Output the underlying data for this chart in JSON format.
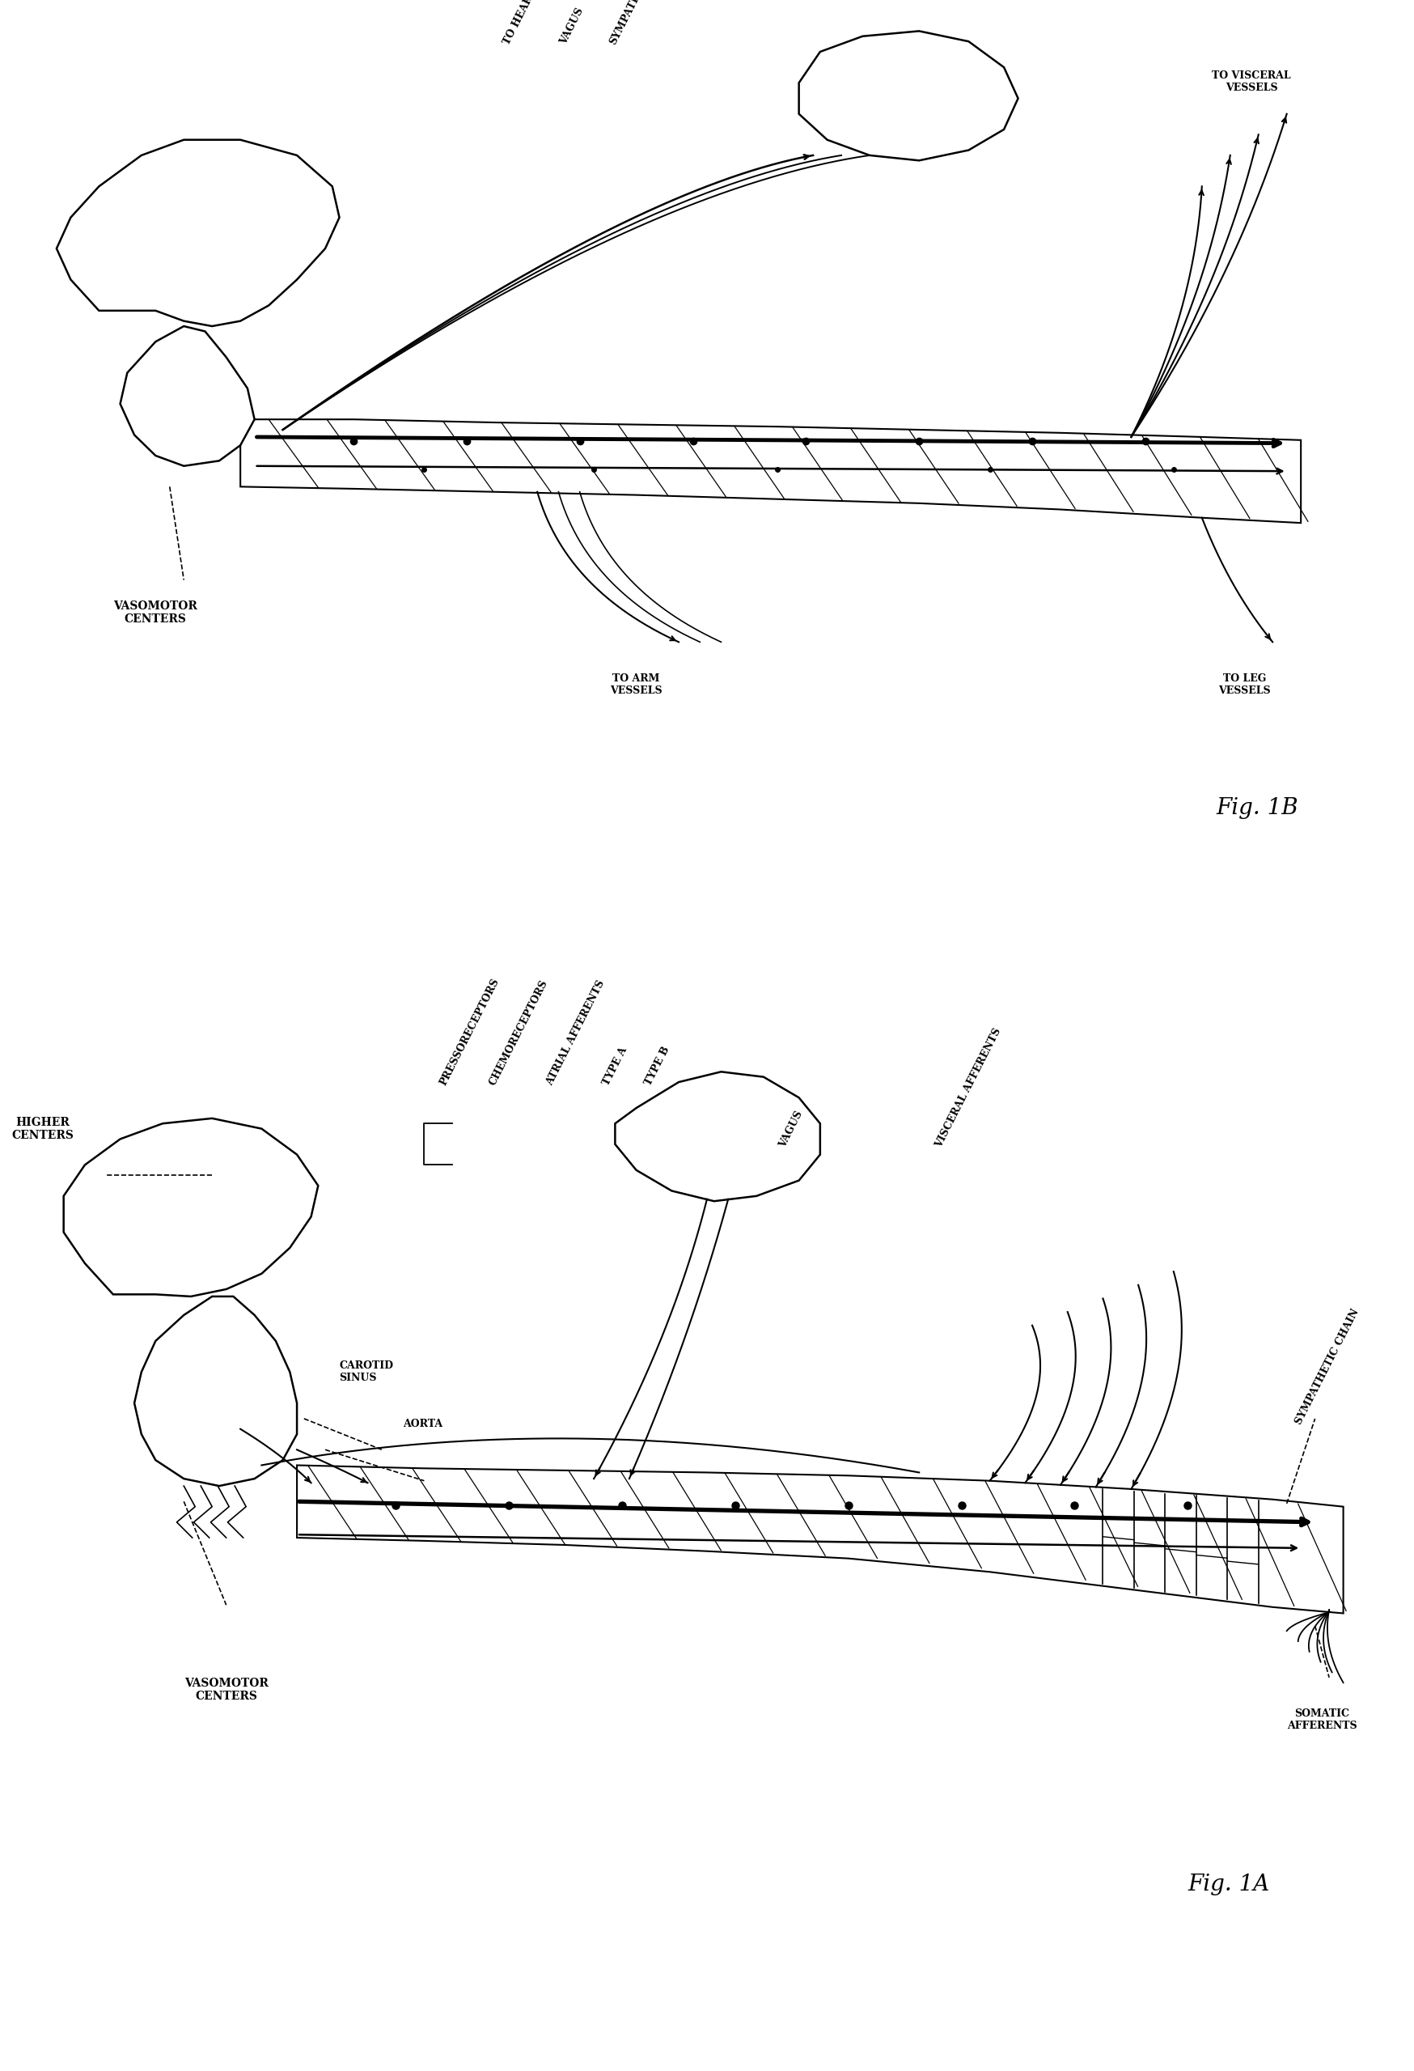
{
  "bg_color": "#ffffff",
  "line_color": "#000000",
  "fig_width": 17.48,
  "fig_height": 25.59,
  "fig_label_B": "Fig. 1B",
  "fig_label_A": "Fig. 1A",
  "panel_B_labels": {
    "vasomotor_centers": "VASOMOTOR\nCENTERS",
    "to_heart": "TO HEART",
    "vagus": "VAGUS",
    "sympathetics": "SYMPATHETICS",
    "to_visceral_vessels": "TO VISCERAL\nVESSELS",
    "to_arm_vessels": "TO ARM\nVESSELS",
    "to_leg_vessels": "TO LEG\nVESSELS"
  },
  "panel_A_labels": {
    "higher_centers": "HIGHER\nCENTERS",
    "vasomotor_centers": "VASOMOTOR\nCENTERS",
    "carotid_sinus": "CAROTID\nSINUS",
    "aorta": "AORTA",
    "pressoreceptors": "PRESSORECEPTORS",
    "chemoreceptors": "CHEMORECEPTORS",
    "atrial_afferents": "ATRIAL AFFERENTS",
    "type_a": "TYPE A",
    "type_b": "TYPE B",
    "vagus": "VAGUS",
    "visceral_afferents": "VISCERAL AFFERENTS",
    "sympathetic_chain": "SYMPATHETIC CHAIN",
    "somatic_afferents": "SOMATIC\nAFFERENTS"
  }
}
